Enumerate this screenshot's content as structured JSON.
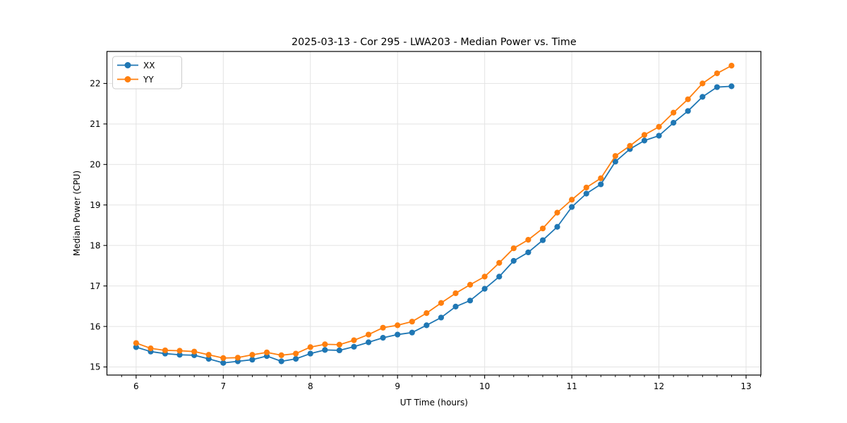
{
  "figure": {
    "title": "2025-03-13 - Cor 295 - LWA203 - Median Power vs. Time",
    "xlabel": "UT Time (hours)",
    "ylabel": "Median Power (CPU)"
  },
  "legend": {
    "entries": [
      {
        "label": "XX",
        "color": "#1f77b4"
      },
      {
        "label": "YY",
        "color": "#ff7f0e"
      }
    ],
    "position": "upper left"
  },
  "colors": {
    "background": "#ffffff",
    "grid": "#e3e3e3",
    "axis": "#000000",
    "series_xx": "#1f77b4",
    "series_yy": "#ff7f0e",
    "legend_border": "#cccccc"
  },
  "chart_data": {
    "type": "line",
    "title": "2025-03-13 - Cor 295 - LWA203 - Median Power vs. Time",
    "xlabel": "UT Time (hours)",
    "ylabel": "Median Power (CPU)",
    "xlim": [
      5.665,
      13.17
    ],
    "ylim": [
      14.8,
      22.79
    ],
    "x_ticks": [
      6,
      7,
      8,
      9,
      10,
      11,
      12,
      13
    ],
    "y_ticks": [
      15,
      16,
      17,
      18,
      19,
      20,
      21,
      22
    ],
    "x_minor_tick_step": 0.16667,
    "grid": true,
    "legend_position": "upper left",
    "marker": "circle",
    "x": [
      6.0,
      6.167,
      6.333,
      6.5,
      6.667,
      6.833,
      7.0,
      7.167,
      7.333,
      7.5,
      7.667,
      7.833,
      8.0,
      8.167,
      8.333,
      8.5,
      8.667,
      8.833,
      9.0,
      9.167,
      9.333,
      9.5,
      9.667,
      9.833,
      10.0,
      10.167,
      10.333,
      10.5,
      10.667,
      10.833,
      11.0,
      11.167,
      11.333,
      11.5,
      11.667,
      11.833,
      12.0,
      12.167,
      12.333,
      12.5,
      12.667,
      12.833
    ],
    "series": [
      {
        "name": "XX",
        "color": "#1f77b4",
        "values": [
          15.49,
          15.38,
          15.33,
          15.3,
          15.29,
          15.2,
          15.1,
          15.14,
          15.18,
          15.27,
          15.14,
          15.2,
          15.33,
          15.42,
          15.41,
          15.5,
          15.61,
          15.72,
          15.8,
          15.85,
          16.03,
          16.22,
          16.49,
          16.64,
          16.93,
          17.23,
          17.62,
          17.83,
          18.13,
          18.46,
          18.95,
          19.28,
          19.51,
          20.07,
          20.38,
          20.59,
          20.71,
          21.03,
          21.32,
          21.67,
          21.91,
          21.93
        ]
      },
      {
        "name": "YY",
        "color": "#ff7f0e",
        "values": [
          15.59,
          15.46,
          15.41,
          15.4,
          15.38,
          15.3,
          15.22,
          15.23,
          15.3,
          15.36,
          15.29,
          15.33,
          15.49,
          15.56,
          15.55,
          15.66,
          15.8,
          15.97,
          16.03,
          16.12,
          16.33,
          16.58,
          16.82,
          17.03,
          17.23,
          17.57,
          17.93,
          18.14,
          18.42,
          18.81,
          19.13,
          19.43,
          19.66,
          20.21,
          20.46,
          20.73,
          20.93,
          21.28,
          21.61,
          22.0,
          22.25,
          22.44
        ]
      }
    ]
  }
}
